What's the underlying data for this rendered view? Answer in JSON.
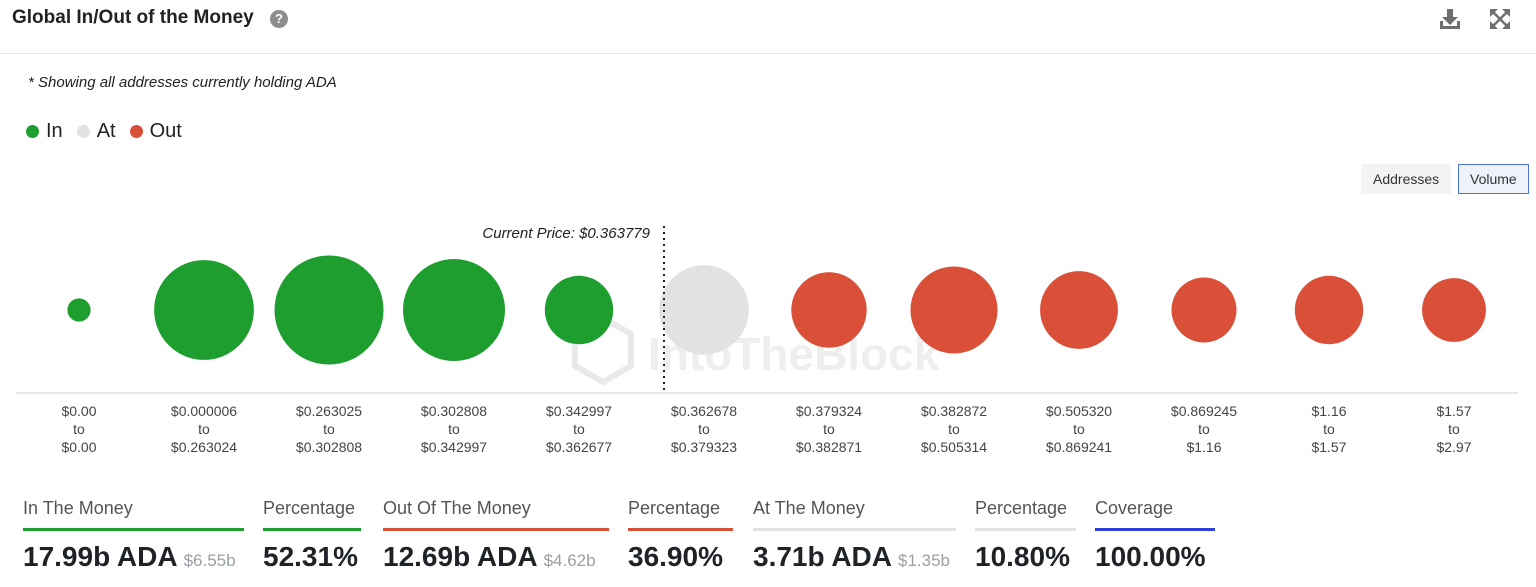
{
  "header": {
    "title": "Global In/Out of the Money",
    "help_icon": "question-circle-icon",
    "download_icon": "download-icon",
    "expand_icon": "expand-icon"
  },
  "note": "* Showing all addresses currently holding ADA",
  "legend": [
    {
      "label": "In",
      "color": "#1e9e2f"
    },
    {
      "label": "At",
      "color": "#e2e2e2"
    },
    {
      "label": "Out",
      "color": "#d94f37"
    }
  ],
  "toggles": {
    "addresses": "Addresses",
    "volume": "Volume",
    "selected": "volume"
  },
  "watermark": "IntoTheBlock",
  "chart_data": {
    "type": "bubble",
    "metric": "Volume",
    "current_price_label": "Current Price: $0.363779",
    "current_price_position_after_index": 4,
    "clusters": [
      {
        "from": "$0.00",
        "to": "$0.00",
        "status": "in",
        "relative_size": 0.2
      },
      {
        "from": "$0.000006",
        "to": "$0.263024",
        "status": "in",
        "relative_size": 0.86
      },
      {
        "from": "$0.263025",
        "to": "$0.302808",
        "status": "in",
        "relative_size": 0.94
      },
      {
        "from": "$0.302808",
        "to": "$0.342997",
        "status": "in",
        "relative_size": 0.88
      },
      {
        "from": "$0.342997",
        "to": "$0.362677",
        "status": "in",
        "relative_size": 0.59
      },
      {
        "from": "$0.362678",
        "to": "$0.379323",
        "status": "at",
        "relative_size": 0.77
      },
      {
        "from": "$0.379324",
        "to": "$0.382871",
        "status": "out",
        "relative_size": 0.65
      },
      {
        "from": "$0.382872",
        "to": "$0.505314",
        "status": "out",
        "relative_size": 0.75
      },
      {
        "from": "$0.505320",
        "to": "$0.869241",
        "status": "out",
        "relative_size": 0.67
      },
      {
        "from": "$0.869245",
        "to": "$1.16",
        "status": "out",
        "relative_size": 0.56
      },
      {
        "from": "$1.16",
        "to": "$1.57",
        "status": "out",
        "relative_size": 0.59
      },
      {
        "from": "$1.57",
        "to": "$2.97",
        "status": "out",
        "relative_size": 0.55
      }
    ],
    "range_connector": "to"
  },
  "stats": [
    {
      "label": "In The Money",
      "value": "17.99b ADA",
      "usd": "$6.55b",
      "color": "#1e9e2f"
    },
    {
      "label": "Percentage",
      "value": "52.31%",
      "usd": "",
      "color": "#1e9e2f"
    },
    {
      "label": "Out Of The Money",
      "value": "12.69b ADA",
      "usd": "$4.62b",
      "color": "#d94f37"
    },
    {
      "label": "Percentage",
      "value": "36.90%",
      "usd": "",
      "color": "#d94f37"
    },
    {
      "label": "At The Money",
      "value": "3.71b ADA",
      "usd": "$1.35b",
      "color": "#e2e2e2"
    },
    {
      "label": "Percentage",
      "value": "10.80%",
      "usd": "",
      "color": "#e2e2e2"
    },
    {
      "label": "Coverage",
      "value": "100.00%",
      "usd": "",
      "color": "#2c3fd9"
    }
  ]
}
